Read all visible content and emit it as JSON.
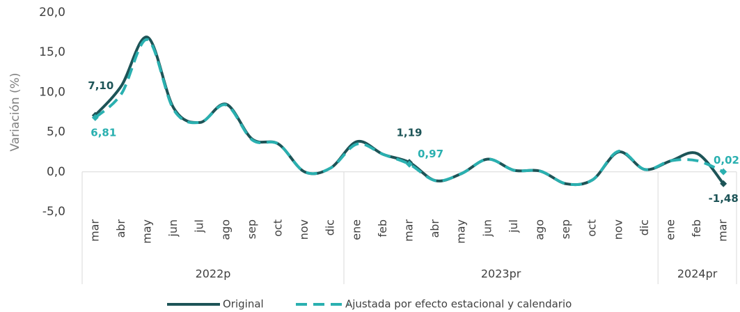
{
  "chart_data": {
    "type": "line",
    "ylabel": "Variación (%)",
    "groups": [
      {
        "label": "2022p",
        "categories": [
          "mar",
          "abr",
          "may",
          "jun",
          "jul",
          "ago",
          "sep",
          "oct",
          "nov",
          "dic"
        ]
      },
      {
        "label": "2023pr",
        "categories": [
          "ene",
          "feb",
          "mar",
          "abr",
          "may",
          "jun",
          "jul",
          "ago",
          "sep",
          "oct",
          "nov",
          "dic"
        ]
      },
      {
        "label": "2024pr",
        "categories": [
          "ene",
          "feb",
          "mar"
        ]
      }
    ],
    "ylim": [
      -5,
      20
    ],
    "yticks": [
      {
        "value": -5,
        "label": "-5,0"
      },
      {
        "value": 0,
        "label": "0,0"
      },
      {
        "value": 5,
        "label": "5,0"
      },
      {
        "value": 10,
        "label": "10,0"
      },
      {
        "value": 15,
        "label": "15,0"
      },
      {
        "value": 20,
        "label": "20,0"
      }
    ],
    "series": [
      {
        "name": "Original",
        "color": "#1d5457",
        "dash": false,
        "values": [
          7.1,
          10.8,
          16.9,
          8.0,
          6.2,
          8.5,
          4.1,
          3.5,
          0.0,
          0.5,
          3.8,
          2.2,
          1.19,
          -1.1,
          -0.2,
          1.6,
          0.2,
          0.1,
          -1.5,
          -1.0,
          2.5,
          0.3,
          1.4,
          2.3,
          -1.48
        ],
        "value_labels": [
          "7,10",
          null,
          null,
          null,
          null,
          null,
          null,
          null,
          null,
          null,
          null,
          null,
          "1,19",
          null,
          null,
          null,
          null,
          null,
          null,
          null,
          null,
          null,
          null,
          null,
          "-1,48"
        ]
      },
      {
        "name": "Ajustada por efecto estacional y calendario",
        "color": "#2ab0b0",
        "dash": true,
        "values": [
          6.81,
          9.8,
          16.6,
          7.8,
          6.2,
          8.4,
          4.0,
          3.5,
          0.0,
          0.5,
          3.5,
          2.2,
          0.97,
          -1.1,
          -0.2,
          1.6,
          0.2,
          0.1,
          -1.5,
          -1.0,
          2.6,
          0.3,
          1.4,
          1.4,
          0.02
        ],
        "value_labels": [
          "6,81",
          null,
          null,
          null,
          null,
          null,
          null,
          null,
          null,
          null,
          null,
          null,
          "0,97",
          null,
          null,
          null,
          null,
          null,
          null,
          null,
          null,
          null,
          null,
          null,
          "0,02"
        ]
      }
    ]
  }
}
